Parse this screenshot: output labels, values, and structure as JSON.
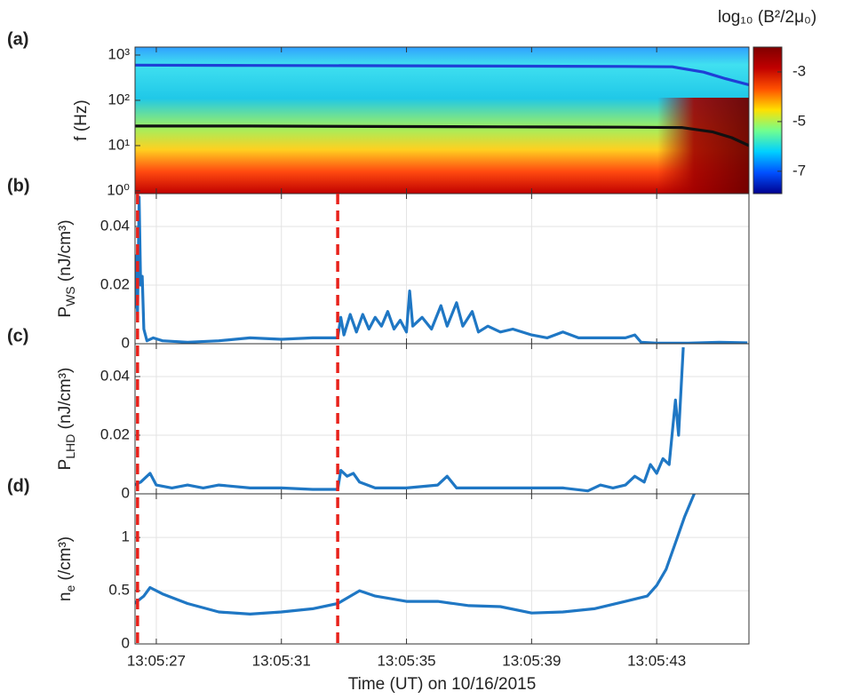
{
  "chart_data": [
    {
      "type": "line",
      "label": "(a)",
      "ylabel": "f (Hz)",
      "log_y": true,
      "grid": false,
      "xlim": [
        26.32,
        45.95
      ],
      "xticks": [
        27,
        31,
        35,
        39,
        43
      ],
      "ylim": [
        0.87,
        1500
      ],
      "yticks": [
        {
          "value": 1,
          "label": "10⁰"
        },
        {
          "value": 10,
          "label": "10¹"
        },
        {
          "value": 100,
          "label": "10²"
        },
        {
          "value": 1000,
          "label": "10³"
        }
      ],
      "series": [
        {
          "color": "#1f3fd6",
          "x": [
            26.32,
            30,
            34,
            38,
            42,
            43.5,
            44.5,
            45.2,
            45.95
          ],
          "values": [
            600,
            590,
            580,
            570,
            560,
            550,
            420,
            300,
            220
          ]
        },
        {
          "color": "#111111",
          "x": [
            26.32,
            30,
            34,
            38,
            42,
            43.8,
            44.8,
            45.4,
            45.95
          ],
          "values": [
            27,
            27,
            26.5,
            26,
            25.5,
            25,
            20,
            15,
            10
          ]
        }
      ],
      "colorbar": {
        "title": "log₁₀ (B²/2μ₀)",
        "lim": [
          -7.9,
          -2
        ],
        "ticks": [
          -3,
          -5,
          -7
        ],
        "colors": [
          "#00008f",
          "#0050ff",
          "#00d0ff",
          "#70ff90",
          "#ffe000",
          "#ff5000",
          "#c00000",
          "#800000"
        ]
      }
    },
    {
      "type": "line",
      "label": "(b)",
      "ylabel": {
        "main": "P",
        "sub": "WS",
        "rest": " (nJ/cm³)"
      },
      "grid": true,
      "xlim": [
        26.32,
        45.95
      ],
      "xticks": [
        27,
        31,
        35,
        39,
        43
      ],
      "ylim": [
        0,
        0.0512
      ],
      "yticks": [
        0,
        0.02,
        0.04
      ],
      "series": [
        {
          "color": "#1f77c4",
          "x": [
            26.3,
            26.35,
            26.4,
            26.45,
            26.5,
            26.55,
            26.6,
            26.7,
            26.9,
            27.2,
            28,
            29,
            30,
            31,
            32,
            32.8,
            32.9,
            33.0,
            33.2,
            33.4,
            33.6,
            33.8,
            34.0,
            34.2,
            34.4,
            34.6,
            34.8,
            35.0,
            35.1,
            35.2,
            35.5,
            35.8,
            36.1,
            36.3,
            36.6,
            36.8,
            37.1,
            37.3,
            37.6,
            38.0,
            38.4,
            39.0,
            39.5,
            40,
            40.5,
            41,
            42,
            42.3,
            42.5,
            43,
            44,
            45,
            45.9
          ],
          "values": [
            0.012,
            0.03,
            0.01,
            0.05,
            0.02,
            0.023,
            0.005,
            0.001,
            0.002,
            0.001,
            0.0005,
            0.001,
            0.002,
            0.0015,
            0.002,
            0.002,
            0.009,
            0.003,
            0.01,
            0.004,
            0.01,
            0.005,
            0.009,
            0.006,
            0.011,
            0.005,
            0.008,
            0.004,
            0.018,
            0.006,
            0.009,
            0.005,
            0.013,
            0.006,
            0.014,
            0.006,
            0.011,
            0.004,
            0.006,
            0.004,
            0.005,
            0.003,
            0.002,
            0.004,
            0.002,
            0.002,
            0.002,
            0.003,
            0.0005,
            0.0002,
            0.0002,
            0.0005,
            0.0003
          ]
        }
      ]
    },
    {
      "type": "line",
      "label": "(c)",
      "ylabel": {
        "main": "P",
        "sub": "LHD",
        "rest": " (nJ/cm³)"
      },
      "grid": true,
      "xlim": [
        26.32,
        45.95
      ],
      "xticks": [
        27,
        31,
        35,
        39,
        43
      ],
      "ylim": [
        0,
        0.0512
      ],
      "yticks": [
        0,
        0.02,
        0.04
      ],
      "series": [
        {
          "color": "#1f77c4",
          "x": [
            26.3,
            26.5,
            26.8,
            27.0,
            27.5,
            28,
            28.5,
            29,
            30,
            31,
            32,
            32.8,
            32.9,
            33.1,
            33.3,
            33.5,
            34,
            35,
            36,
            36.3,
            36.6,
            37,
            38,
            39,
            40,
            40.8,
            41.2,
            41.6,
            42,
            42.3,
            42.6,
            42.8,
            43.0,
            43.2,
            43.4,
            43.6,
            43.7,
            43.85
          ],
          "values": [
            0.003,
            0.004,
            0.007,
            0.003,
            0.002,
            0.003,
            0.002,
            0.003,
            0.002,
            0.002,
            0.0015,
            0.0015,
            0.008,
            0.006,
            0.007,
            0.004,
            0.002,
            0.002,
            0.003,
            0.006,
            0.002,
            0.002,
            0.002,
            0.002,
            0.002,
            0.001,
            0.003,
            0.002,
            0.003,
            0.006,
            0.004,
            0.01,
            0.007,
            0.012,
            0.01,
            0.032,
            0.02,
            0.05
          ]
        }
      ]
    },
    {
      "type": "line",
      "label": "(d)",
      "ylabel": {
        "main": "n",
        "sub": "e",
        "rest": " (/cm³)"
      },
      "grid": true,
      "xlabel": "Time (UT) on 10/16/2015",
      "xlim": [
        26.32,
        45.95
      ],
      "xticks": [
        {
          "value": 27,
          "label": "13:05:27"
        },
        {
          "value": 31,
          "label": "13:05:31"
        },
        {
          "value": 35,
          "label": "13:05:35"
        },
        {
          "value": 39,
          "label": "13:05:39"
        },
        {
          "value": 43,
          "label": "13:05:43"
        }
      ],
      "ylim": [
        0,
        1.41
      ],
      "yticks": [
        0,
        0.5,
        1
      ],
      "vlines": {
        "x": [
          26.4,
          32.8
        ],
        "color": "#e8221b"
      },
      "series": [
        {
          "color": "#1f77c4",
          "x": [
            26.3,
            26.6,
            26.8,
            27.2,
            28,
            29,
            30,
            31,
            32,
            32.8,
            33.5,
            34,
            35,
            36,
            37,
            38,
            39,
            40,
            41,
            42,
            42.7,
            43,
            43.3,
            43.6,
            43.9,
            44.2
          ],
          "values": [
            0.38,
            0.45,
            0.53,
            0.47,
            0.38,
            0.3,
            0.28,
            0.3,
            0.33,
            0.38,
            0.5,
            0.45,
            0.4,
            0.4,
            0.36,
            0.35,
            0.29,
            0.3,
            0.33,
            0.4,
            0.45,
            0.55,
            0.7,
            0.95,
            1.2,
            1.41
          ]
        }
      ]
    }
  ]
}
